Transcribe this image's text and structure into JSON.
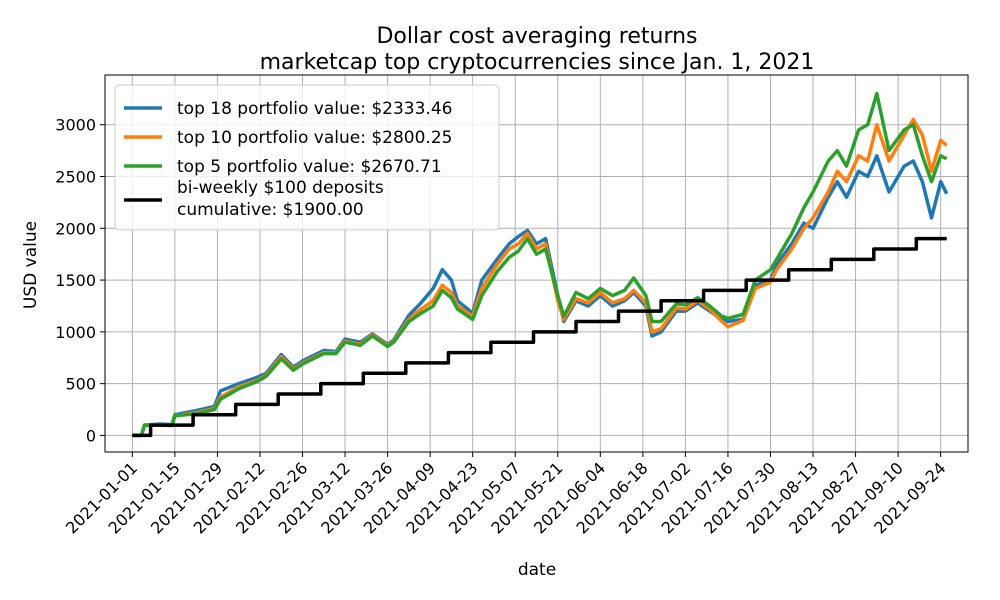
{
  "chart_data": {
    "type": "line",
    "title": "Dollar cost averaging returns",
    "subtitle": "marketcap top cryptocurrencies since Jan. 1, 2021",
    "xlabel": "date",
    "ylabel": "USD value",
    "x_range": [
      "2020-12-23",
      "2021-10-03"
    ],
    "ylim": [
      -160,
      3480
    ],
    "y_ticks": [
      0,
      500,
      1000,
      1500,
      2000,
      2500,
      3000
    ],
    "x_ticks": [
      "2021-01-01",
      "2021-01-15",
      "2021-01-29",
      "2021-02-12",
      "2021-02-26",
      "2021-03-12",
      "2021-03-26",
      "2021-04-09",
      "2021-04-23",
      "2021-05-07",
      "2021-05-21",
      "2021-06-04",
      "2021-06-18",
      "2021-07-02",
      "2021-07-16",
      "2021-07-30",
      "2021-08-13",
      "2021-08-27",
      "2021-09-10",
      "2021-09-24"
    ],
    "grid": true,
    "legend_position": "top-left",
    "series": [
      {
        "name": "top 18 portfolio value: $2333.46",
        "color": "#1f77b4",
        "points": [
          [
            "2021-01-01",
            0
          ],
          [
            "2021-01-04",
            0
          ],
          [
            "2021-01-05",
            100
          ],
          [
            "2021-01-10",
            110
          ],
          [
            "2021-01-14",
            105
          ],
          [
            "2021-01-15",
            200
          ],
          [
            "2021-01-22",
            240
          ],
          [
            "2021-01-28",
            280
          ],
          [
            "2021-01-30",
            430
          ],
          [
            "2021-02-05",
            500
          ],
          [
            "2021-02-11",
            560
          ],
          [
            "2021-02-14",
            600
          ],
          [
            "2021-02-19",
            780
          ],
          [
            "2021-02-23",
            660
          ],
          [
            "2021-02-26",
            720
          ],
          [
            "2021-03-05",
            820
          ],
          [
            "2021-03-09",
            810
          ],
          [
            "2021-03-12",
            930
          ],
          [
            "2021-03-17",
            900
          ],
          [
            "2021-03-21",
            980
          ],
          [
            "2021-03-26",
            880
          ],
          [
            "2021-03-28",
            920
          ],
          [
            "2021-04-02",
            1160
          ],
          [
            "2021-04-06",
            1280
          ],
          [
            "2021-04-10",
            1420
          ],
          [
            "2021-04-13",
            1600
          ],
          [
            "2021-04-16",
            1500
          ],
          [
            "2021-04-18",
            1300
          ],
          [
            "2021-04-23",
            1180
          ],
          [
            "2021-04-26",
            1500
          ],
          [
            "2021-05-01",
            1700
          ],
          [
            "2021-05-05",
            1850
          ],
          [
            "2021-05-08",
            1920
          ],
          [
            "2021-05-11",
            1980
          ],
          [
            "2021-05-14",
            1850
          ],
          [
            "2021-05-17",
            1900
          ],
          [
            "2021-05-21",
            1350
          ],
          [
            "2021-05-23",
            1100
          ],
          [
            "2021-05-27",
            1300
          ],
          [
            "2021-05-31",
            1250
          ],
          [
            "2021-06-04",
            1350
          ],
          [
            "2021-06-08",
            1250
          ],
          [
            "2021-06-12",
            1300
          ],
          [
            "2021-06-15",
            1380
          ],
          [
            "2021-06-19",
            1250
          ],
          [
            "2021-06-21",
            960
          ],
          [
            "2021-06-24",
            1000
          ],
          [
            "2021-06-29",
            1200
          ],
          [
            "2021-07-02",
            1200
          ],
          [
            "2021-07-06",
            1280
          ],
          [
            "2021-07-10",
            1200
          ],
          [
            "2021-07-14",
            1120
          ],
          [
            "2021-07-16",
            1100
          ],
          [
            "2021-07-21",
            1120
          ],
          [
            "2021-07-25",
            1450
          ],
          [
            "2021-07-30",
            1500
          ],
          [
            "2021-08-01",
            1650
          ],
          [
            "2021-08-06",
            1850
          ],
          [
            "2021-08-10",
            2050
          ],
          [
            "2021-08-13",
            2000
          ],
          [
            "2021-08-18",
            2300
          ],
          [
            "2021-08-21",
            2450
          ],
          [
            "2021-08-24",
            2300
          ],
          [
            "2021-08-28",
            2550
          ],
          [
            "2021-08-31",
            2500
          ],
          [
            "2021-09-03",
            2700
          ],
          [
            "2021-09-07",
            2350
          ],
          [
            "2021-09-12",
            2600
          ],
          [
            "2021-09-15",
            2650
          ],
          [
            "2021-09-18",
            2450
          ],
          [
            "2021-09-21",
            2100
          ],
          [
            "2021-09-24",
            2450
          ],
          [
            "2021-09-26",
            2333.46
          ]
        ]
      },
      {
        "name": "top 10 portfolio value: $2800.25",
        "color": "#ff7f0e",
        "points": [
          [
            "2021-01-01",
            0
          ],
          [
            "2021-01-04",
            0
          ],
          [
            "2021-01-05",
            100
          ],
          [
            "2021-01-10",
            105
          ],
          [
            "2021-01-14",
            100
          ],
          [
            "2021-01-15",
            190
          ],
          [
            "2021-01-22",
            220
          ],
          [
            "2021-01-28",
            260
          ],
          [
            "2021-01-30",
            370
          ],
          [
            "2021-02-05",
            470
          ],
          [
            "2021-02-11",
            530
          ],
          [
            "2021-02-14",
            580
          ],
          [
            "2021-02-19",
            760
          ],
          [
            "2021-02-23",
            640
          ],
          [
            "2021-02-26",
            700
          ],
          [
            "2021-03-05",
            800
          ],
          [
            "2021-03-09",
            800
          ],
          [
            "2021-03-12",
            910
          ],
          [
            "2021-03-17",
            880
          ],
          [
            "2021-03-21",
            970
          ],
          [
            "2021-03-26",
            870
          ],
          [
            "2021-03-28",
            910
          ],
          [
            "2021-04-02",
            1120
          ],
          [
            "2021-04-06",
            1220
          ],
          [
            "2021-04-10",
            1300
          ],
          [
            "2021-04-13",
            1450
          ],
          [
            "2021-04-16",
            1380
          ],
          [
            "2021-04-18",
            1250
          ],
          [
            "2021-04-23",
            1150
          ],
          [
            "2021-04-26",
            1420
          ],
          [
            "2021-05-01",
            1650
          ],
          [
            "2021-05-05",
            1800
          ],
          [
            "2021-05-08",
            1850
          ],
          [
            "2021-05-11",
            1950
          ],
          [
            "2021-05-14",
            1800
          ],
          [
            "2021-05-17",
            1850
          ],
          [
            "2021-05-21",
            1300
          ],
          [
            "2021-05-23",
            1120
          ],
          [
            "2021-05-27",
            1320
          ],
          [
            "2021-05-31",
            1280
          ],
          [
            "2021-06-04",
            1380
          ],
          [
            "2021-06-08",
            1280
          ],
          [
            "2021-06-12",
            1320
          ],
          [
            "2021-06-15",
            1400
          ],
          [
            "2021-06-19",
            1280
          ],
          [
            "2021-06-21",
            1000
          ],
          [
            "2021-06-24",
            1030
          ],
          [
            "2021-06-29",
            1230
          ],
          [
            "2021-07-02",
            1220
          ],
          [
            "2021-07-06",
            1300
          ],
          [
            "2021-07-10",
            1220
          ],
          [
            "2021-07-14",
            1100
          ],
          [
            "2021-07-16",
            1050
          ],
          [
            "2021-07-21",
            1110
          ],
          [
            "2021-07-25",
            1420
          ],
          [
            "2021-07-30",
            1480
          ],
          [
            "2021-08-01",
            1600
          ],
          [
            "2021-08-06",
            1800
          ],
          [
            "2021-08-10",
            2000
          ],
          [
            "2021-08-13",
            2100
          ],
          [
            "2021-08-18",
            2350
          ],
          [
            "2021-08-21",
            2550
          ],
          [
            "2021-08-24",
            2450
          ],
          [
            "2021-08-28",
            2700
          ],
          [
            "2021-08-31",
            2650
          ],
          [
            "2021-09-03",
            3000
          ],
          [
            "2021-09-07",
            2650
          ],
          [
            "2021-09-12",
            2900
          ],
          [
            "2021-09-15",
            3050
          ],
          [
            "2021-09-18",
            2900
          ],
          [
            "2021-09-21",
            2550
          ],
          [
            "2021-09-24",
            2850
          ],
          [
            "2021-09-26",
            2800.25
          ]
        ]
      },
      {
        "name": "top 5 portfolio value: $2670.71",
        "color": "#2ca02c",
        "points": [
          [
            "2021-01-01",
            0
          ],
          [
            "2021-01-04",
            0
          ],
          [
            "2021-01-05",
            100
          ],
          [
            "2021-01-10",
            100
          ],
          [
            "2021-01-14",
            95
          ],
          [
            "2021-01-15",
            190
          ],
          [
            "2021-01-22",
            210
          ],
          [
            "2021-01-28",
            250
          ],
          [
            "2021-01-30",
            350
          ],
          [
            "2021-02-05",
            450
          ],
          [
            "2021-02-11",
            520
          ],
          [
            "2021-02-14",
            570
          ],
          [
            "2021-02-19",
            740
          ],
          [
            "2021-02-23",
            630
          ],
          [
            "2021-02-26",
            690
          ],
          [
            "2021-03-05",
            790
          ],
          [
            "2021-03-09",
            790
          ],
          [
            "2021-03-12",
            900
          ],
          [
            "2021-03-17",
            870
          ],
          [
            "2021-03-21",
            960
          ],
          [
            "2021-03-26",
            860
          ],
          [
            "2021-03-28",
            900
          ],
          [
            "2021-04-02",
            1100
          ],
          [
            "2021-04-06",
            1180
          ],
          [
            "2021-04-10",
            1250
          ],
          [
            "2021-04-13",
            1400
          ],
          [
            "2021-04-16",
            1330
          ],
          [
            "2021-04-18",
            1220
          ],
          [
            "2021-04-23",
            1120
          ],
          [
            "2021-04-26",
            1350
          ],
          [
            "2021-05-01",
            1580
          ],
          [
            "2021-05-05",
            1720
          ],
          [
            "2021-05-08",
            1780
          ],
          [
            "2021-05-11",
            1900
          ],
          [
            "2021-05-14",
            1750
          ],
          [
            "2021-05-17",
            1800
          ],
          [
            "2021-05-21",
            1350
          ],
          [
            "2021-05-23",
            1150
          ],
          [
            "2021-05-27",
            1380
          ],
          [
            "2021-05-31",
            1320
          ],
          [
            "2021-06-04",
            1420
          ],
          [
            "2021-06-08",
            1350
          ],
          [
            "2021-06-12",
            1400
          ],
          [
            "2021-06-15",
            1520
          ],
          [
            "2021-06-19",
            1350
          ],
          [
            "2021-06-21",
            1100
          ],
          [
            "2021-06-24",
            1100
          ],
          [
            "2021-06-29",
            1270
          ],
          [
            "2021-07-02",
            1260
          ],
          [
            "2021-07-06",
            1330
          ],
          [
            "2021-07-10",
            1250
          ],
          [
            "2021-07-14",
            1150
          ],
          [
            "2021-07-16",
            1130
          ],
          [
            "2021-07-21",
            1170
          ],
          [
            "2021-07-25",
            1500
          ],
          [
            "2021-07-30",
            1600
          ],
          [
            "2021-08-01",
            1700
          ],
          [
            "2021-08-06",
            1950
          ],
          [
            "2021-08-10",
            2200
          ],
          [
            "2021-08-13",
            2350
          ],
          [
            "2021-08-18",
            2650
          ],
          [
            "2021-08-21",
            2750
          ],
          [
            "2021-08-24",
            2600
          ],
          [
            "2021-08-28",
            2950
          ],
          [
            "2021-08-31",
            3000
          ],
          [
            "2021-09-03",
            3300
          ],
          [
            "2021-09-07",
            2750
          ],
          [
            "2021-09-12",
            2950
          ],
          [
            "2021-09-15",
            3000
          ],
          [
            "2021-09-18",
            2700
          ],
          [
            "2021-09-21",
            2450
          ],
          [
            "2021-09-24",
            2700
          ],
          [
            "2021-09-26",
            2670.71
          ]
        ]
      },
      {
        "name": "bi-weekly $100 deposits\ncumulative: $1900.00",
        "color": "#000000",
        "step": true,
        "points": [
          [
            "2021-01-01",
            0
          ],
          [
            "2021-01-07",
            100
          ],
          [
            "2021-01-21",
            200
          ],
          [
            "2021-02-04",
            300
          ],
          [
            "2021-02-18",
            400
          ],
          [
            "2021-03-04",
            500
          ],
          [
            "2021-03-18",
            600
          ],
          [
            "2021-04-01",
            700
          ],
          [
            "2021-04-15",
            800
          ],
          [
            "2021-04-29",
            900
          ],
          [
            "2021-05-13",
            1000
          ],
          [
            "2021-05-27",
            1100
          ],
          [
            "2021-06-10",
            1200
          ],
          [
            "2021-06-24",
            1300
          ],
          [
            "2021-07-08",
            1400
          ],
          [
            "2021-07-22",
            1500
          ],
          [
            "2021-08-05",
            1600
          ],
          [
            "2021-08-19",
            1700
          ],
          [
            "2021-09-02",
            1800
          ],
          [
            "2021-09-16",
            1900
          ],
          [
            "2021-09-26",
            1900
          ]
        ]
      }
    ]
  }
}
